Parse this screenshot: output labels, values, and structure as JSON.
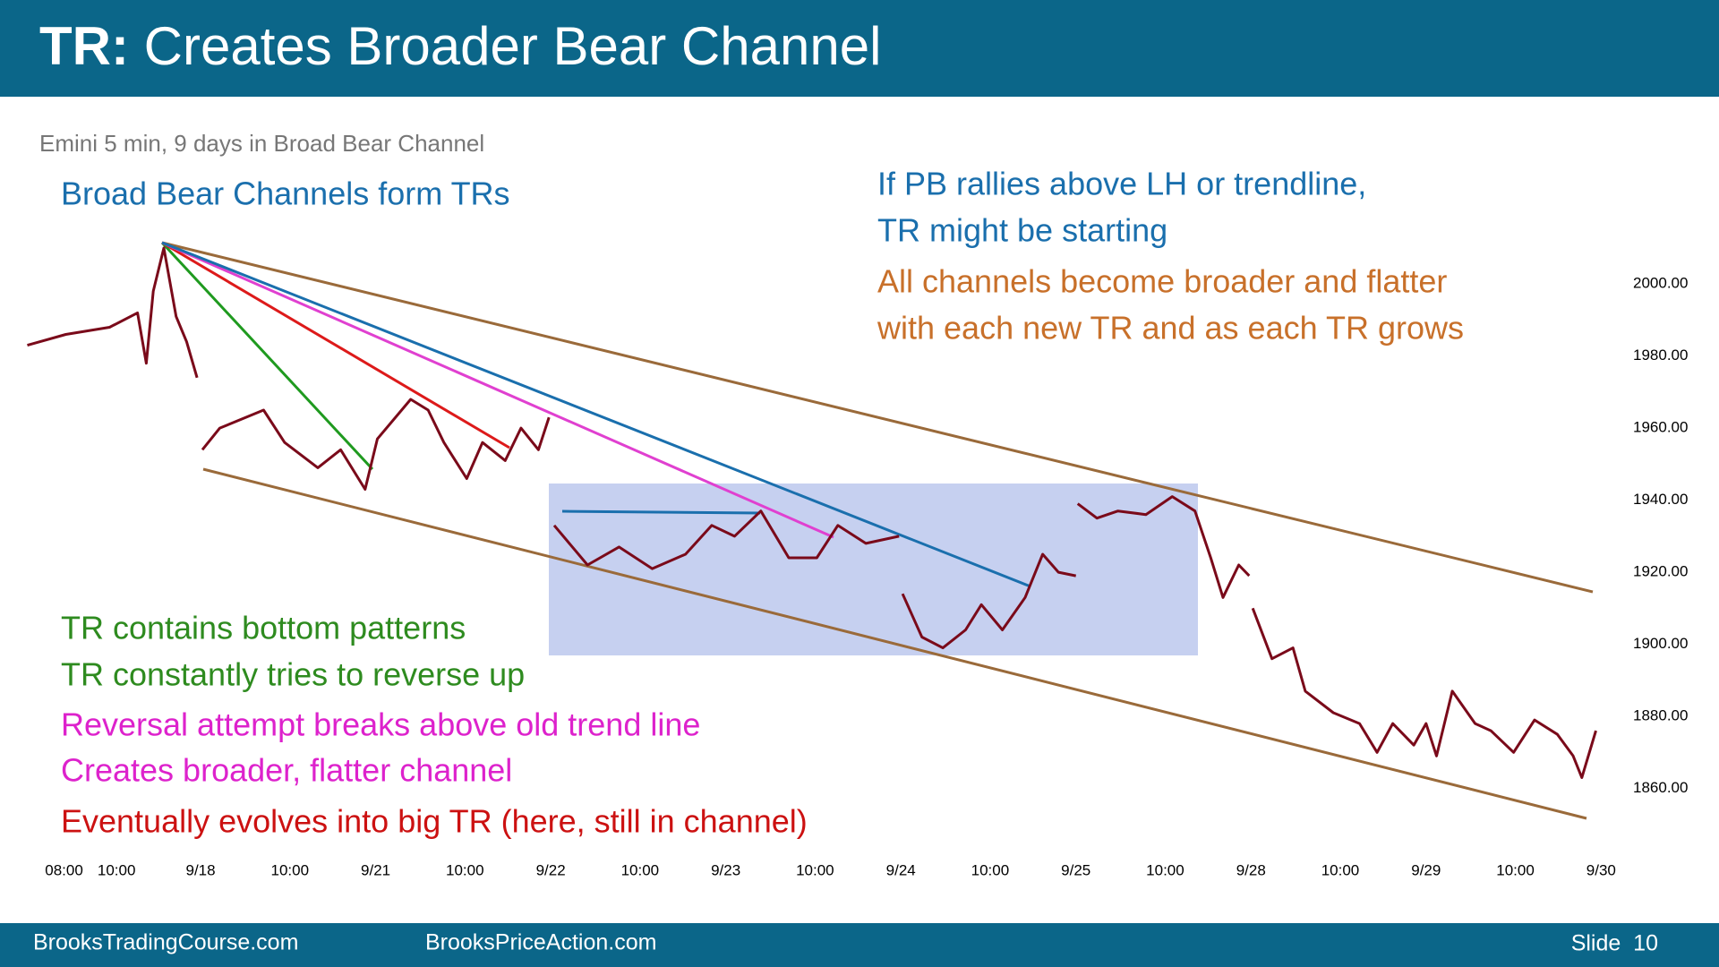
{
  "header": {
    "title_prefix": "TR:",
    "title": "Creates Broader Bear Channel"
  },
  "footer": {
    "left": "BrooksTradingCourse.com",
    "center": "BrooksPriceAction.com",
    "slide": "Slide  10"
  },
  "chart_data": {
    "type": "line",
    "subtitle": "Emini 5 min, 9 days in Broad Bear Channel",
    "annotations": [
      {
        "text": "Broad Bear Channels form TRs",
        "color": "#1a6fad"
      },
      {
        "text": "If PB rallies above LH or trendline,",
        "color": "#1a6fad"
      },
      {
        "text": "TR might be starting",
        "color": "#1a6fad"
      },
      {
        "text": "All channels become broader and flatter",
        "color": "#c8702a"
      },
      {
        "text": "with each new TR and as each TR grows",
        "color": "#c8702a"
      },
      {
        "text": "TR contains bottom patterns",
        "color": "#2e8b1f"
      },
      {
        "text": "TR constantly tries to reverse up",
        "color": "#2e8b1f"
      },
      {
        "text": "Reversal attempt breaks above old trend line",
        "color": "#dd22cc"
      },
      {
        "text": "Creates broader, flatter channel",
        "color": "#dd22cc"
      },
      {
        "text": "Eventually evolves into big TR (here, still in channel)",
        "color": "#cc1111"
      }
    ],
    "color": "#7a0a1a",
    "x": [
      -0.99,
      -0.77,
      -0.52,
      -0.36,
      -0.31,
      -0.27,
      -0.21,
      -0.14,
      -0.08,
      -0.02,
      null,
      0.01,
      0.11,
      0.36,
      0.48,
      0.67,
      0.8,
      0.94,
      1.01,
      1.2,
      1.3,
      1.39,
      1.52,
      1.61,
      1.74,
      1.83,
      1.93,
      1.99,
      null,
      2.02,
      2.21,
      2.39,
      2.58,
      2.77,
      2.92,
      3.05,
      3.2,
      3.36,
      3.52,
      3.64,
      3.8,
      3.99,
      null,
      4.01,
      4.12,
      4.24,
      4.37,
      4.46,
      4.58,
      4.71,
      4.81,
      4.9,
      5.0,
      null,
      5.01,
      5.12,
      5.24,
      5.4,
      5.55,
      5.68,
      5.77,
      5.84,
      5.93,
      5.99,
      null,
      6.01,
      6.12,
      6.24,
      6.31,
      6.47,
      6.62,
      6.72,
      6.81,
      6.93,
      7.0,
      7.06,
      7.15,
      7.28,
      7.37,
      7.5,
      7.62,
      7.75,
      7.84,
      7.89,
      7.97
    ],
    "values": [
      1983,
      1986,
      1988,
      1992,
      1978,
      1998,
      2010,
      1991,
      1984,
      1974,
      null,
      1954,
      1960,
      1965,
      1956,
      1949,
      1954,
      1943,
      1957,
      1968,
      1965,
      1956,
      1946,
      1956,
      1951,
      1960,
      1954,
      1963,
      null,
      1933,
      1922,
      1927,
      1921,
      1925,
      1933,
      1930,
      1937,
      1924,
      1924,
      1933,
      1928,
      1930,
      null,
      1914,
      1902,
      1899,
      1904,
      1911,
      1904,
      1913,
      1925,
      1920,
      1919,
      null,
      1939,
      1935,
      1937,
      1936,
      1941,
      1937,
      1924,
      1913,
      1922,
      1919,
      null,
      1910,
      1896,
      1899,
      1887,
      1881,
      1878,
      1870,
      1878,
      1872,
      1878,
      1869,
      1887,
      1878,
      1876,
      1870,
      1879,
      1875,
      1869,
      1863,
      1876
    ],
    "xlim": [
      -1,
      8.3
    ],
    "ylim": [
      1840,
      2050
    ],
    "xticks": [
      {
        "value": -0.78,
        "label": "08:00"
      },
      {
        "value": -0.48,
        "label": "10:00"
      },
      {
        "value": 0,
        "label": "9/18"
      },
      {
        "value": 0.51,
        "label": "10:00"
      },
      {
        "value": 1,
        "label": "9/21"
      },
      {
        "value": 1.51,
        "label": "10:00"
      },
      {
        "value": 2,
        "label": "9/22"
      },
      {
        "value": 2.51,
        "label": "10:00"
      },
      {
        "value": 3,
        "label": "9/23"
      },
      {
        "value": 3.51,
        "label": "10:00"
      },
      {
        "value": 4,
        "label": "9/24"
      },
      {
        "value": 4.51,
        "label": "10:00"
      },
      {
        "value": 5,
        "label": "9/25"
      },
      {
        "value": 5.51,
        "label": "10:00"
      },
      {
        "value": 6,
        "label": "9/28"
      },
      {
        "value": 6.51,
        "label": "10:00"
      },
      {
        "value": 7,
        "label": "9/29"
      },
      {
        "value": 7.51,
        "label": "10:00"
      },
      {
        "value": 8,
        "label": "9/30"
      }
    ],
    "yticks": [
      {
        "value": 1860,
        "label": "1860.00"
      },
      {
        "value": 1880,
        "label": "1880.00"
      },
      {
        "value": 1900,
        "label": "1900.00"
      },
      {
        "value": 1920,
        "label": "1920.00"
      },
      {
        "value": 1940,
        "label": "1940.00"
      },
      {
        "value": 1960,
        "label": "1960.00"
      },
      {
        "value": 1980,
        "label": "1980.00"
      },
      {
        "value": 2000,
        "label": "2000.00"
      }
    ],
    "grid": false
  }
}
